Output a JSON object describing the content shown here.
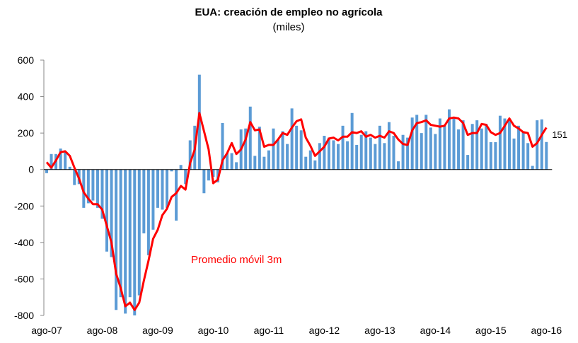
{
  "chart_data": {
    "type": "bar-line",
    "title": "EUA: creación de empleo no agrícola",
    "subtitle": "(miles)",
    "categories": [
      "ago-07",
      null,
      null,
      null,
      null,
      null,
      null,
      null,
      null,
      null,
      null,
      null,
      "ago-08",
      null,
      null,
      null,
      null,
      null,
      null,
      null,
      null,
      null,
      null,
      null,
      "ago-09",
      null,
      null,
      null,
      null,
      null,
      null,
      null,
      null,
      null,
      null,
      null,
      "ago-10",
      null,
      null,
      null,
      null,
      null,
      null,
      null,
      null,
      null,
      null,
      null,
      "ago-11",
      null,
      null,
      null,
      null,
      null,
      null,
      null,
      null,
      null,
      null,
      null,
      "ago-12",
      null,
      null,
      null,
      null,
      null,
      null,
      null,
      null,
      null,
      null,
      null,
      "ago-13",
      null,
      null,
      null,
      null,
      null,
      null,
      null,
      null,
      null,
      null,
      null,
      "ago-14",
      null,
      null,
      null,
      null,
      null,
      null,
      null,
      null,
      null,
      null,
      null,
      "ago-15",
      null,
      null,
      null,
      null,
      null,
      null,
      null,
      null,
      null,
      null,
      null,
      "ago-16"
    ],
    "series": [
      {
        "color": "#5b9bd5",
        "values": [
          -20,
          85,
          85,
          115,
          100,
          15,
          -85,
          -80,
          -210,
          -185,
          -170,
          -210,
          -270,
          -450,
          -480,
          -770,
          -700,
          -790,
          -700,
          -800,
          -690,
          -350,
          -470,
          -330,
          -210,
          -220,
          -210,
          -10,
          -280,
          25,
          -80,
          160,
          240,
          520,
          -130,
          -60,
          -40,
          -70,
          255,
          90,
          90,
          40,
          220,
          225,
          345,
          75,
          235,
          70,
          105,
          225,
          165,
          210,
          140,
          335,
          240,
          215,
          70,
          105,
          50,
          145,
          185,
          175,
          160,
          140,
          240,
          155,
          310,
          135,
          190,
          210,
          175,
          140,
          240,
          145,
          260,
          185,
          45,
          190,
          175,
          285,
          300,
          200,
          300,
          230,
          195,
          280,
          240,
          330,
          280,
          220,
          270,
          80,
          250,
          270,
          225,
          250,
          150,
          150,
          295,
          280,
          270,
          170,
          240,
          210,
          145,
          20,
          270,
          275,
          151
        ]
      },
      {
        "name": "Promedio móvil 3m",
        "color": "#ff0000",
        "values": [
          40,
          10,
          50,
          95,
          100,
          75,
          10,
          -50,
          -125,
          -160,
          -190,
          -190,
          -220,
          -310,
          -400,
          -570,
          -650,
          -750,
          -730,
          -770,
          -730,
          -610,
          -500,
          -380,
          -330,
          -250,
          -215,
          -150,
          -130,
          -90,
          -110,
          35,
          110,
          310,
          210,
          110,
          -75,
          -55,
          50,
          90,
          145,
          85,
          110,
          165,
          260,
          215,
          220,
          125,
          135,
          135,
          165,
          200,
          190,
          230,
          265,
          275,
          175,
          130,
          75,
          100,
          125,
          170,
          175,
          160,
          180,
          180,
          205,
          200,
          210,
          180,
          190,
          175,
          185,
          175,
          210,
          200,
          165,
          140,
          135,
          215,
          255,
          260,
          270,
          245,
          240,
          235,
          240,
          280,
          285,
          280,
          255,
          190,
          200,
          200,
          250,
          245,
          205,
          190,
          200,
          240,
          280,
          240,
          225,
          205,
          200,
          125,
          145,
          190,
          230
        ]
      }
    ],
    "ylim": [
      -800,
      600
    ],
    "yticks": [
      -800,
      -600,
      -400,
      -200,
      0,
      200,
      400,
      600
    ],
    "grid": false
  }
}
